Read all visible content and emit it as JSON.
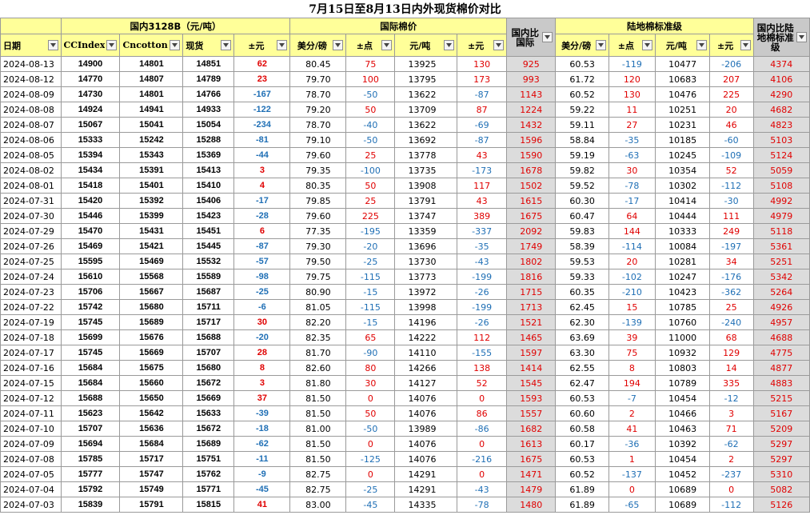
{
  "title": "7月15日至8月13日内外现货棉价对比",
  "groups": {
    "domestic": "国内3128B（元/吨）",
    "intl": "国际棉价",
    "cross_dom_intl": "国内比国际",
    "landed": "陆地棉标准级",
    "cross_dom_landed": "国内比陆地棉标准级"
  },
  "columns": [
    "日期",
    "CCIndex",
    "Cncotton",
    "现货",
    "±元",
    "美分/磅",
    "±点",
    "元/吨",
    "±元",
    "国内比国际",
    "美分/磅",
    "±点",
    "元/吨",
    "±元",
    "国内比陆地棉标准级"
  ],
  "rows": [
    [
      "2024-08-13",
      "14900",
      "14801",
      "14851",
      "62",
      "80.45",
      "75",
      "13925",
      "130",
      "925",
      "60.53",
      "-119",
      "10477",
      "-206",
      "4374"
    ],
    [
      "2024-08-12",
      "14770",
      "14807",
      "14789",
      "23",
      "79.70",
      "100",
      "13795",
      "173",
      "993",
      "61.72",
      "120",
      "10683",
      "207",
      "4106"
    ],
    [
      "2024-08-09",
      "14730",
      "14801",
      "14766",
      "-167",
      "78.70",
      "-50",
      "13622",
      "-87",
      "1143",
      "60.52",
      "130",
      "10476",
      "225",
      "4290"
    ],
    [
      "2024-08-08",
      "14924",
      "14941",
      "14933",
      "-122",
      "79.20",
      "50",
      "13709",
      "87",
      "1224",
      "59.22",
      "11",
      "10251",
      "20",
      "4682"
    ],
    [
      "2024-08-07",
      "15067",
      "15041",
      "15054",
      "-234",
      "78.70",
      "-40",
      "13622",
      "-69",
      "1432",
      "59.11",
      "27",
      "10231",
      "46",
      "4823"
    ],
    [
      "2024-08-06",
      "15333",
      "15242",
      "15288",
      "-81",
      "79.10",
      "-50",
      "13692",
      "-87",
      "1596",
      "58.84",
      "-35",
      "10185",
      "-60",
      "5103"
    ],
    [
      "2024-08-05",
      "15394",
      "15343",
      "15369",
      "-44",
      "79.60",
      "25",
      "13778",
      "43",
      "1590",
      "59.19",
      "-63",
      "10245",
      "-109",
      "5124"
    ],
    [
      "2024-08-02",
      "15434",
      "15391",
      "15413",
      "3",
      "79.35",
      "-100",
      "13735",
      "-173",
      "1678",
      "59.82",
      "30",
      "10354",
      "52",
      "5059"
    ],
    [
      "2024-08-01",
      "15418",
      "15401",
      "15410",
      "4",
      "80.35",
      "50",
      "13908",
      "117",
      "1502",
      "59.52",
      "-78",
      "10302",
      "-112",
      "5108"
    ],
    [
      "2024-07-31",
      "15420",
      "15392",
      "15406",
      "-17",
      "79.85",
      "25",
      "13791",
      "43",
      "1615",
      "60.30",
      "-17",
      "10414",
      "-30",
      "4992"
    ],
    [
      "2024-07-30",
      "15446",
      "15399",
      "15423",
      "-28",
      "79.60",
      "225",
      "13747",
      "389",
      "1675",
      "60.47",
      "64",
      "10444",
      "111",
      "4979"
    ],
    [
      "2024-07-29",
      "15470",
      "15431",
      "15451",
      "6",
      "77.35",
      "-195",
      "13359",
      "-337",
      "2092",
      "59.83",
      "144",
      "10333",
      "249",
      "5118"
    ],
    [
      "2024-07-26",
      "15469",
      "15421",
      "15445",
      "-87",
      "79.30",
      "-20",
      "13696",
      "-35",
      "1749",
      "58.39",
      "-114",
      "10084",
      "-197",
      "5361"
    ],
    [
      "2024-07-25",
      "15595",
      "15469",
      "15532",
      "-57",
      "79.50",
      "-25",
      "13730",
      "-43",
      "1802",
      "59.53",
      "20",
      "10281",
      "34",
      "5251"
    ],
    [
      "2024-07-24",
      "15610",
      "15568",
      "15589",
      "-98",
      "79.75",
      "-115",
      "13773",
      "-199",
      "1816",
      "59.33",
      "-102",
      "10247",
      "-176",
      "5342"
    ],
    [
      "2024-07-23",
      "15706",
      "15667",
      "15687",
      "-25",
      "80.90",
      "-15",
      "13972",
      "-26",
      "1715",
      "60.35",
      "-210",
      "10423",
      "-362",
      "5264"
    ],
    [
      "2024-07-22",
      "15742",
      "15680",
      "15711",
      "-6",
      "81.05",
      "-115",
      "13998",
      "-199",
      "1713",
      "62.45",
      "15",
      "10785",
      "25",
      "4926"
    ],
    [
      "2024-07-19",
      "15745",
      "15689",
      "15717",
      "30",
      "82.20",
      "-15",
      "14196",
      "-26",
      "1521",
      "62.30",
      "-139",
      "10760",
      "-240",
      "4957"
    ],
    [
      "2024-07-18",
      "15699",
      "15676",
      "15688",
      "-20",
      "82.35",
      "65",
      "14222",
      "112",
      "1465",
      "63.69",
      "39",
      "11000",
      "68",
      "4688"
    ],
    [
      "2024-07-17",
      "15745",
      "15669",
      "15707",
      "28",
      "81.70",
      "-90",
      "14110",
      "-155",
      "1597",
      "63.30",
      "75",
      "10932",
      "129",
      "4775"
    ],
    [
      "2024-07-16",
      "15684",
      "15675",
      "15680",
      "8",
      "82.60",
      "80",
      "14266",
      "138",
      "1414",
      "62.55",
      "8",
      "10803",
      "14",
      "4877"
    ],
    [
      "2024-07-15",
      "15684",
      "15660",
      "15672",
      "3",
      "81.80",
      "30",
      "14127",
      "52",
      "1545",
      "62.47",
      "194",
      "10789",
      "335",
      "4883"
    ],
    [
      "2024-07-12",
      "15688",
      "15650",
      "15669",
      "37",
      "81.50",
      "0",
      "14076",
      "0",
      "1593",
      "60.53",
      "-7",
      "10454",
      "-12",
      "5215"
    ],
    [
      "2024-07-11",
      "15623",
      "15642",
      "15633",
      "-39",
      "81.50",
      "50",
      "14076",
      "86",
      "1557",
      "60.60",
      "2",
      "10466",
      "3",
      "5167"
    ],
    [
      "2024-07-10",
      "15707",
      "15636",
      "15672",
      "-18",
      "81.00",
      "-50",
      "13989",
      "-86",
      "1682",
      "60.58",
      "41",
      "10463",
      "71",
      "5209"
    ],
    [
      "2024-07-09",
      "15694",
      "15684",
      "15689",
      "-62",
      "81.50",
      "0",
      "14076",
      "0",
      "1613",
      "60.17",
      "-36",
      "10392",
      "-62",
      "5297"
    ],
    [
      "2024-07-08",
      "15785",
      "15717",
      "15751",
      "-11",
      "81.50",
      "-125",
      "14076",
      "-216",
      "1675",
      "60.53",
      "1",
      "10454",
      "2",
      "5297"
    ],
    [
      "2024-07-05",
      "15777",
      "15747",
      "15762",
      "-9",
      "82.75",
      "0",
      "14291",
      "0",
      "1471",
      "60.52",
      "-137",
      "10452",
      "-237",
      "5310"
    ],
    [
      "2024-07-04",
      "15792",
      "15749",
      "15771",
      "-45",
      "82.75",
      "-25",
      "14291",
      "-43",
      "1479",
      "61.89",
      "0",
      "10689",
      "0",
      "5082"
    ],
    [
      "2024-07-03",
      "15839",
      "15791",
      "15815",
      "41",
      "83.00",
      "-45",
      "14335",
      "-78",
      "1480",
      "61.89",
      "-65",
      "10689",
      "-112",
      "5126"
    ]
  ],
  "colors": {
    "header_bg": "#ffff99",
    "grey_bg": "#c9c9c9",
    "grey_cell": "#dcdcdc",
    "positive": "#e00000",
    "negative": "#1f6fb5"
  },
  "icons": {
    "filter": "filter-dropdown-icon"
  }
}
